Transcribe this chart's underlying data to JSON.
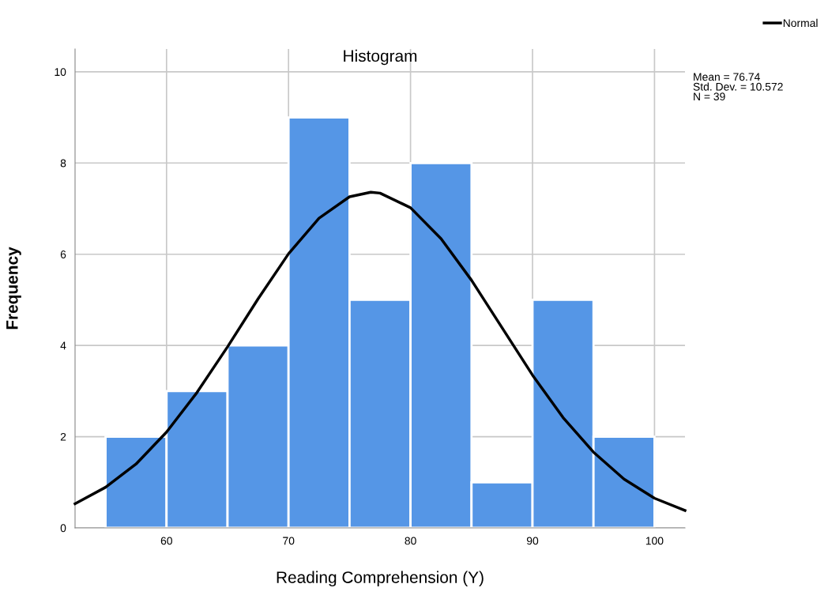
{
  "chart_data": {
    "type": "histogram",
    "title": "Histogram",
    "xlabel": "Reading Comprehension (Y)",
    "ylabel": "Frequency",
    "bins": [
      55,
      60,
      65,
      70,
      75,
      80,
      85,
      90,
      95,
      100
    ],
    "values": [
      2,
      3,
      4,
      9,
      5,
      8,
      1,
      5,
      2
    ],
    "color": "#5596e6",
    "series": [
      {
        "name": "Normal",
        "type": "line",
        "color": "#000000",
        "x": [
          52.5,
          55,
          57.5,
          60,
          62.5,
          65,
          67.5,
          70,
          72.5,
          75,
          76.74,
          77.5,
          80,
          82.5,
          85,
          87.5,
          90,
          92.5,
          95,
          97.5,
          100,
          102.5
        ],
        "values": [
          0.53,
          0.89,
          1.4,
          2.1,
          2.97,
          3.97,
          5.02,
          6.01,
          6.79,
          7.26,
          7.36,
          7.34,
          7.02,
          6.34,
          5.43,
          4.39,
          3.35,
          2.42,
          1.66,
          1.07,
          0.65,
          0.38
        ]
      }
    ],
    "xlim": [
      52.5,
      102.5
    ],
    "xticks": [
      60,
      70,
      80,
      90,
      100
    ],
    "ylim": [
      0,
      10.5
    ],
    "yticks": [
      0,
      2,
      4,
      6,
      8,
      10
    ],
    "grid": true,
    "legend": "top right",
    "marker": "none",
    "line_style": "solid",
    "annotations": [
      "Mean = 76.74\nStd. Dev. = 10.572\nN = 39"
    ]
  }
}
